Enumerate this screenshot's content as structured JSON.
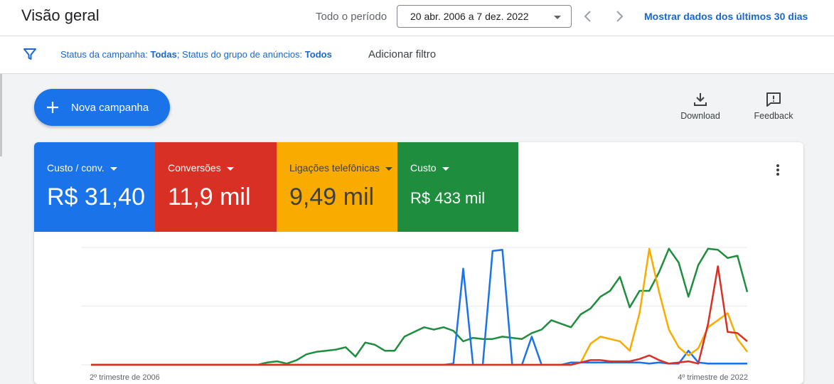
{
  "header": {
    "title": "Visão geral",
    "period_label": "Todo o período",
    "date_range": "20 abr. 2006 a 7 dez. 2022",
    "last30_link": "Mostrar dados dos últimos 30 dias"
  },
  "filters": {
    "campaign_status_label": "Status da campanha:",
    "campaign_status_value": "Todas",
    "separator": ";",
    "adgroup_status_label": " Status do grupo de anúncios:",
    "adgroup_status_value": "Todos",
    "add_filter": "Adicionar filtro"
  },
  "actions": {
    "new_campaign": "Nova campanha",
    "download": "Download",
    "feedback": "Feedback"
  },
  "metrics": [
    {
      "label": "Custo / conv.",
      "value": "R$ 31,40",
      "color": "#1a73e8"
    },
    {
      "label": "Conversões",
      "value": "11,9 mil",
      "color": "#d93025"
    },
    {
      "label": "Ligações telefônicas",
      "value": "9,49 mil",
      "color": "#f9ab00"
    },
    {
      "label": "Custo",
      "value": "R$ 433 mil",
      "color": "#1e8e3e"
    }
  ],
  "chart_data": {
    "type": "line",
    "x_tick_labels": [
      "2º trimestre de 2006",
      "4º trimestre de 2022"
    ],
    "x": [
      0,
      1,
      2,
      3,
      4,
      5,
      6,
      7,
      8,
      9,
      10,
      11,
      12,
      13,
      14,
      15,
      16,
      17,
      18,
      19,
      20,
      21,
      22,
      23,
      24,
      25,
      26,
      27,
      28,
      29,
      30,
      31,
      32,
      33,
      34,
      35,
      36,
      37,
      38,
      39,
      40,
      41,
      42,
      43,
      44,
      45,
      46,
      47,
      48,
      49,
      50,
      51,
      52,
      53,
      54,
      55,
      56,
      57,
      58,
      59,
      60,
      61,
      62,
      63,
      64,
      65,
      66,
      67
    ],
    "ylim": [
      0,
      100
    ],
    "series": [
      {
        "color": "#1e8e3e",
        "values": [
          0,
          0,
          0,
          0,
          0,
          0,
          0,
          0,
          0,
          0,
          0,
          0,
          0,
          0,
          0,
          0,
          0,
          0,
          2,
          3,
          1,
          4,
          9,
          11,
          12,
          13,
          15,
          7,
          19,
          17,
          12,
          12,
          24,
          28,
          32,
          30,
          32,
          29,
          20,
          23,
          22,
          22,
          24,
          23,
          22,
          27,
          30,
          38,
          35,
          32,
          43,
          48,
          58,
          63,
          75,
          49,
          63,
          63,
          79,
          99,
          87,
          58,
          85,
          99,
          98,
          91,
          93,
          62
        ]
      },
      {
        "color": "#1a73e8",
        "values": [
          0,
          0,
          0,
          0,
          0,
          0,
          0,
          0,
          0,
          0,
          0,
          0,
          0,
          0,
          0,
          0,
          0,
          0,
          0,
          0,
          0,
          0,
          0,
          0,
          0,
          0,
          0,
          0,
          0,
          0,
          0,
          0,
          0,
          0,
          0,
          0,
          0,
          1,
          82,
          0,
          0,
          97,
          98,
          0,
          0,
          24,
          0,
          0,
          0,
          2,
          2,
          2,
          2,
          2,
          2,
          2,
          2,
          1,
          2,
          1,
          1,
          12,
          2,
          1,
          1,
          1,
          1,
          1
        ]
      },
      {
        "color": "#f9ab00",
        "values": [
          0,
          0,
          0,
          0,
          0,
          0,
          0,
          0,
          0,
          0,
          0,
          0,
          0,
          0,
          0,
          0,
          0,
          0,
          0,
          0,
          0,
          0,
          0,
          0,
          0,
          0,
          0,
          0,
          0,
          0,
          0,
          0,
          0,
          0,
          0,
          0,
          0,
          0,
          0,
          0,
          0,
          0,
          0,
          0,
          0,
          0,
          0,
          0,
          0,
          0,
          2,
          18,
          24,
          22,
          20,
          12,
          44,
          99,
          62,
          30,
          15,
          8,
          14,
          32,
          38,
          44,
          22,
          11
        ]
      },
      {
        "color": "#d93025",
        "values": [
          0,
          0,
          0,
          0,
          0,
          0,
          0,
          0,
          0,
          0,
          0,
          0,
          0,
          0,
          0,
          0,
          0,
          0,
          0,
          0,
          0,
          0,
          0,
          0,
          0,
          0,
          0,
          0,
          0,
          0,
          0,
          0,
          0,
          0,
          0,
          0,
          0,
          0,
          0,
          0,
          0,
          0,
          0,
          0,
          0,
          0,
          0,
          0,
          0,
          0,
          2,
          4,
          4,
          3,
          3,
          3,
          5,
          8,
          4,
          1,
          2,
          3,
          1,
          35,
          84,
          28,
          27,
          20
        ]
      }
    ]
  }
}
